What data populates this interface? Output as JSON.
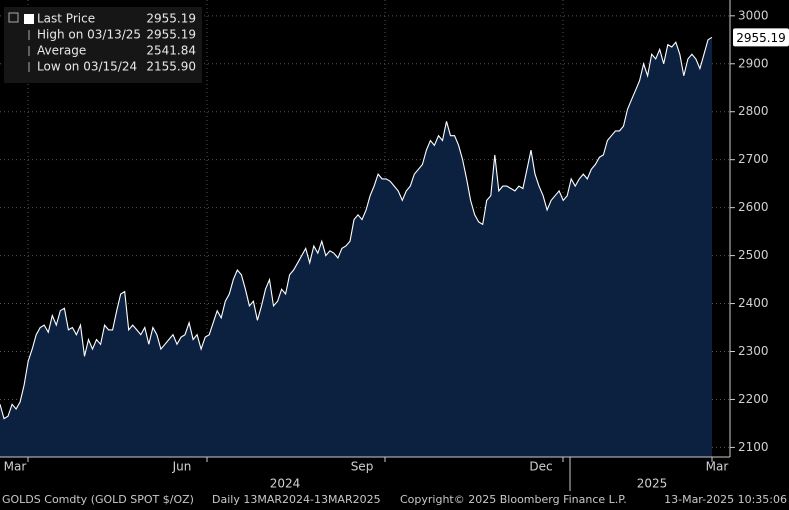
{
  "chart_data": {
    "type": "area",
    "series": [
      {
        "name": "Last Price",
        "color": "#ffffff",
        "fill": "#0c2140",
        "values": [
          2190,
          2160,
          2165,
          2190,
          2180,
          2195,
          2230,
          2280,
          2305,
          2335,
          2350,
          2355,
          2340,
          2375,
          2355,
          2385,
          2390,
          2345,
          2350,
          2335,
          2355,
          2290,
          2325,
          2305,
          2325,
          2315,
          2355,
          2345,
          2345,
          2385,
          2420,
          2425,
          2345,
          2355,
          2345,
          2335,
          2350,
          2315,
          2350,
          2335,
          2305,
          2315,
          2325,
          2335,
          2315,
          2330,
          2335,
          2360,
          2325,
          2335,
          2305,
          2330,
          2335,
          2360,
          2385,
          2370,
          2405,
          2420,
          2450,
          2470,
          2460,
          2430,
          2395,
          2405,
          2365,
          2395,
          2430,
          2450,
          2395,
          2405,
          2430,
          2420,
          2460,
          2470,
          2485,
          2500,
          2515,
          2485,
          2520,
          2505,
          2530,
          2500,
          2510,
          2505,
          2495,
          2515,
          2520,
          2530,
          2575,
          2585,
          2575,
          2595,
          2625,
          2645,
          2670,
          2660,
          2660,
          2655,
          2645,
          2635,
          2615,
          2635,
          2645,
          2670,
          2680,
          2690,
          2720,
          2740,
          2730,
          2750,
          2740,
          2780,
          2750,
          2750,
          2730,
          2700,
          2660,
          2615,
          2585,
          2570,
          2565,
          2615,
          2625,
          2710,
          2635,
          2645,
          2645,
          2640,
          2635,
          2645,
          2640,
          2680,
          2720,
          2670,
          2645,
          2625,
          2595,
          2615,
          2625,
          2635,
          2615,
          2625,
          2660,
          2645,
          2660,
          2670,
          2660,
          2680,
          2690,
          2705,
          2710,
          2740,
          2750,
          2760,
          2760,
          2770,
          2805,
          2825,
          2845,
          2865,
          2900,
          2875,
          2920,
          2910,
          2930,
          2900,
          2940,
          2935,
          2945,
          2920,
          2875,
          2910,
          2920,
          2910,
          2890,
          2920,
          2950,
          2955.19
        ]
      }
    ],
    "ylim": [
      2080,
      3033
    ],
    "yticks": [
      2100,
      2200,
      2300,
      2400,
      2500,
      2600,
      2700,
      2800,
      2900,
      3000
    ],
    "grid": true,
    "x_tick_labels": [
      "Mar",
      "Jun",
      "Sep",
      "Dec",
      "Mar"
    ],
    "x_year_labels": [
      "2024",
      "2025"
    ],
    "legend": [
      {
        "label": "Last Price",
        "value": 2955.19
      },
      {
        "label": "High on 03/13/25",
        "value": 2955.19
      },
      {
        "label": "Average",
        "value": 2541.84
      },
      {
        "label": "Low on 03/15/24",
        "value": {
          "value": 2155.9,
          "label": "2155.90"
        }
      }
    ],
    "footer": [
      "GOLDS Comdty (GOLD SPOT $/OZ)",
      "Daily 13MAR2024-13MAR2025",
      "Copyright© 2025 Bloomberg Finance L.P.",
      "13-Mar-2025 10:35:06"
    ]
  }
}
